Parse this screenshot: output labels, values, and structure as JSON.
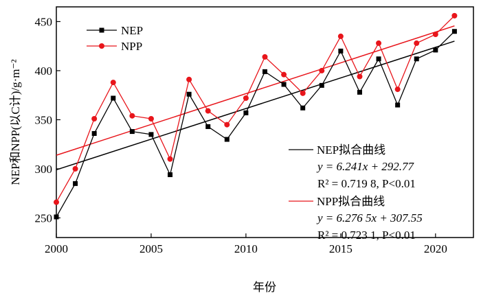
{
  "chart_data": {
    "type": "line",
    "xlabel": "年份",
    "ylabel": "NEP和NPP(以C计)/g·m⁻²",
    "xlim": [
      2000,
      2022
    ],
    "ylim": [
      230,
      465
    ],
    "xticks": [
      2000,
      2005,
      2010,
      2015,
      2020
    ],
    "yticks": [
      250,
      300,
      350,
      400,
      450
    ],
    "legend_position": "top-left",
    "x": [
      2000,
      2001,
      2002,
      2003,
      2004,
      2005,
      2006,
      2007,
      2008,
      2009,
      2010,
      2011,
      2012,
      2013,
      2014,
      2015,
      2016,
      2017,
      2018,
      2019,
      2020,
      2021
    ],
    "series": [
      {
        "name": "NEP",
        "color": "#000000",
        "marker": "square",
        "values": [
          251,
          285,
          336,
          372,
          338,
          335,
          294,
          376,
          343,
          330,
          357,
          399,
          386,
          362,
          385,
          420,
          378,
          412,
          365,
          412,
          421,
          440
        ]
      },
      {
        "name": "NPP",
        "color": "#e8151b",
        "marker": "circle",
        "values": [
          266,
          300,
          351,
          388,
          354,
          351,
          310,
          391,
          359,
          345,
          372,
          414,
          396,
          377,
          400,
          435,
          394,
          428,
          381,
          428,
          437,
          456
        ]
      }
    ],
    "fits": [
      {
        "name": "NEP拟合曲线",
        "color": "#000000",
        "slope": 6.241,
        "intercept": 292.77,
        "equation": "y = 6.241x + 292.77",
        "r2": "R² = 0.719 8, P<0.01"
      },
      {
        "name": "NPP拟合曲线",
        "color": "#e8151b",
        "slope": 6.2765,
        "intercept": 307.55,
        "equation": "y = 6.276 5x + 307.55",
        "r2": "R² = 0.723 1, P<0.01"
      }
    ]
  }
}
